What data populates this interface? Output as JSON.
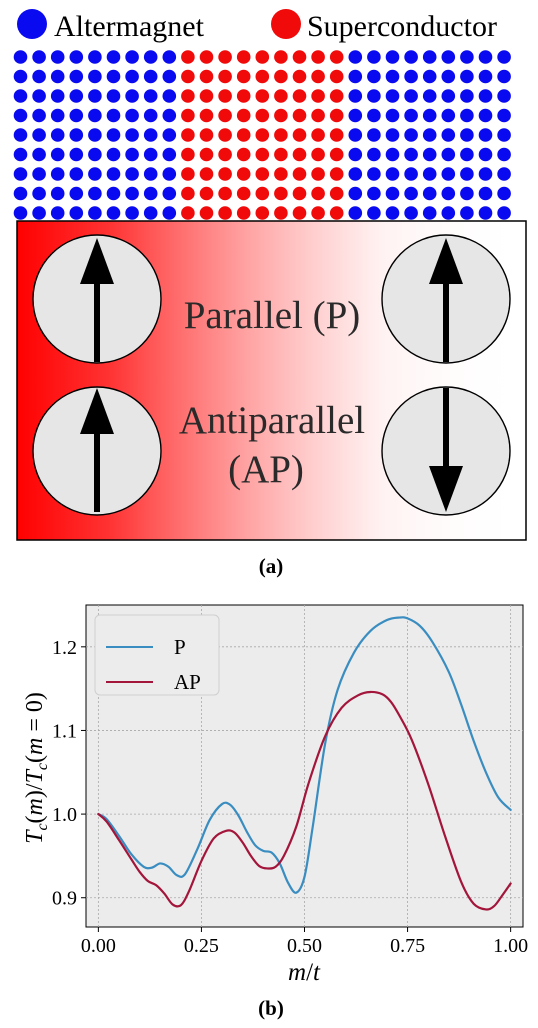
{
  "figure_a": {
    "legend": {
      "items": [
        {
          "label": "Altermagnet",
          "color": "#0a0af0"
        },
        {
          "label": "Superconductor",
          "color": "#f00a0a"
        }
      ]
    },
    "lattice": {
      "rows": 9,
      "sections": [
        {
          "material": "Altermagnet",
          "color": "#0a0af0",
          "columns": 9
        },
        {
          "material": "Superconductor",
          "color": "#f00a0a",
          "columns": 9
        },
        {
          "material": "Altermagnet",
          "color": "#0a0af0",
          "columns": 9
        }
      ]
    },
    "panel": {
      "gradient_color": "#ff0000",
      "configs": [
        {
          "label": "Parallel (P)",
          "left_spin": "up",
          "right_spin": "up"
        },
        {
          "label": "Antiparallel",
          "label_line2": "(AP)",
          "left_spin": "up",
          "right_spin": "down"
        }
      ]
    },
    "caption": "(a)"
  },
  "figure_b": {
    "caption": "(b)",
    "ylabel": "T_c(m)/T_c(m=0)",
    "xlabel": "m/t",
    "chart_data": {
      "type": "line",
      "xlabel": "m/t",
      "ylabel": "T_c(m)/T_c(m=0)",
      "xlim": [
        -0.03,
        1.03
      ],
      "ylim": [
        0.865,
        1.25
      ],
      "grid": true,
      "legend_position": "top-left",
      "xticks": [
        "0.00",
        "0.25",
        "0.50",
        "0.75",
        "1.00"
      ],
      "yticks": [
        "0.9",
        "1.0",
        "1.1",
        "1.2"
      ],
      "series": [
        {
          "name": "P",
          "color": "#3a8dc0",
          "x": [
            0.0,
            0.02,
            0.05,
            0.08,
            0.11,
            0.13,
            0.15,
            0.17,
            0.19,
            0.21,
            0.24,
            0.27,
            0.3,
            0.32,
            0.34,
            0.36,
            0.38,
            0.4,
            0.42,
            0.44,
            0.46,
            0.48,
            0.5,
            0.52,
            0.55,
            0.58,
            0.62,
            0.66,
            0.7,
            0.73,
            0.75,
            0.78,
            0.81,
            0.85,
            0.88,
            0.91,
            0.94,
            0.97,
            1.0
          ],
          "y": [
            1.0,
            0.994,
            0.974,
            0.952,
            0.937,
            0.936,
            0.941,
            0.937,
            0.927,
            0.928,
            0.958,
            0.993,
            1.012,
            1.011,
            0.998,
            0.979,
            0.963,
            0.956,
            0.954,
            0.941,
            0.918,
            0.906,
            0.925,
            0.985,
            1.084,
            1.148,
            1.193,
            1.219,
            1.232,
            1.235,
            1.234,
            1.225,
            1.206,
            1.17,
            1.131,
            1.088,
            1.05,
            1.02,
            1.005
          ]
        },
        {
          "name": "AP",
          "color": "#a3153a",
          "x": [
            0.0,
            0.02,
            0.05,
            0.08,
            0.1,
            0.12,
            0.14,
            0.16,
            0.18,
            0.2,
            0.22,
            0.25,
            0.28,
            0.31,
            0.33,
            0.35,
            0.37,
            0.39,
            0.41,
            0.43,
            0.45,
            0.48,
            0.51,
            0.55,
            0.59,
            0.63,
            0.66,
            0.69,
            0.71,
            0.73,
            0.76,
            0.8,
            0.84,
            0.88,
            0.91,
            0.94,
            0.96,
            0.98,
            1.0
          ],
          "y": [
            1.0,
            0.991,
            0.969,
            0.946,
            0.931,
            0.92,
            0.915,
            0.905,
            0.892,
            0.891,
            0.908,
            0.944,
            0.971,
            0.98,
            0.978,
            0.966,
            0.95,
            0.938,
            0.935,
            0.937,
            0.95,
            0.985,
            1.037,
            1.093,
            1.127,
            1.142,
            1.146,
            1.143,
            1.134,
            1.118,
            1.089,
            1.036,
            0.975,
            0.919,
            0.893,
            0.886,
            0.89,
            0.903,
            0.917
          ]
        }
      ]
    }
  }
}
